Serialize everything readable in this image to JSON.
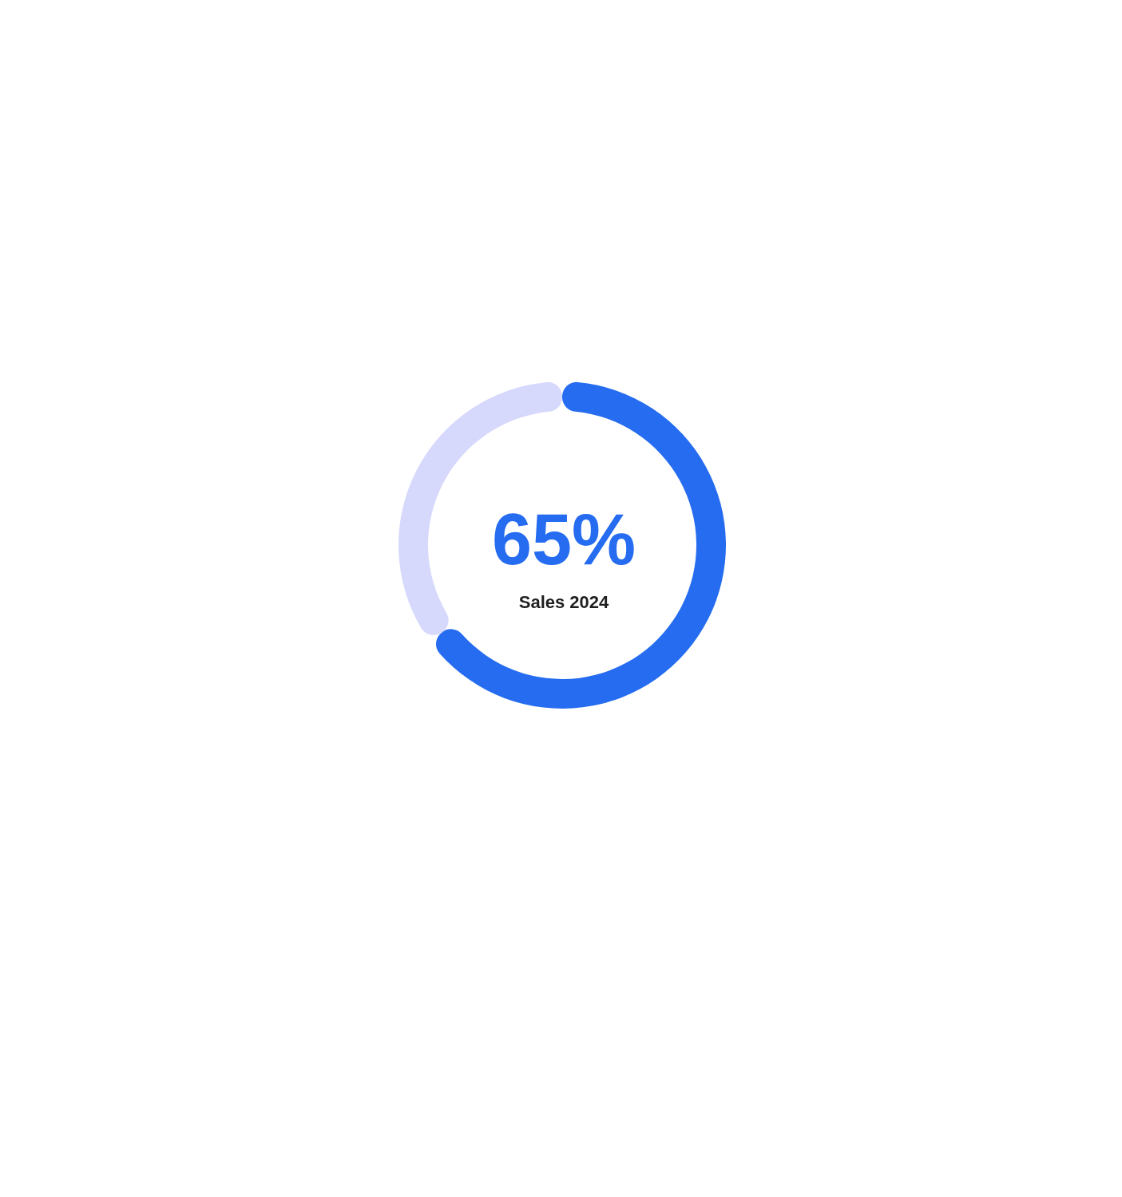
{
  "chart_data": {
    "type": "donut",
    "categories": [
      null,
      null
    ],
    "values": [
      65,
      35
    ],
    "colors": [
      "#256cf0",
      "#d6d8fc"
    ],
    "annotations": [
      "65%",
      "Sales 2024"
    ]
  }
}
